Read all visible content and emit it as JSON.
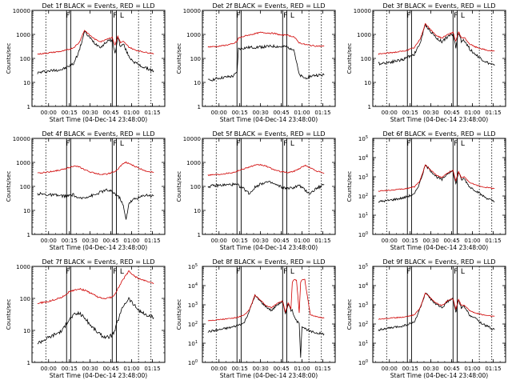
{
  "figure": {
    "xlabel": "Start Time (04-Dec-14 23:48:00)",
    "ylabel": "Counts/sec",
    "x_tick_labels": [
      "00:00",
      "00:15",
      "00:30",
      "00:45",
      "01:00",
      "01:15"
    ]
  },
  "chart_data": [
    {
      "type": "line",
      "title": "Det 1f BLACK = Events, RED = LLD",
      "xlabel": "Start Time (04-Dec-14 23:48:00)",
      "ylabel": "Counts/sec",
      "ylog": true,
      "ylim": [
        1,
        10000
      ],
      "y_tick_labels": [
        "1",
        "10",
        "100",
        "1000",
        "10000"
      ],
      "x_time": [
        -8,
        0,
        10,
        14,
        18,
        22,
        26,
        30,
        34,
        38,
        42,
        46,
        48,
        50,
        52,
        54,
        58,
        62,
        66,
        70,
        76
      ],
      "series": [
        {
          "name": "Events",
          "color": "#000000",
          "values": [
            25,
            30,
            35,
            45,
            60,
            200,
            1300,
            700,
            400,
            300,
            500,
            600,
            150,
            800,
            300,
            400,
            120,
            70,
            50,
            40,
            30
          ]
        },
        {
          "name": "LLD",
          "color": "#d00000",
          "values": [
            150,
            170,
            200,
            230,
            280,
            450,
            1500,
            900,
            600,
            500,
            650,
            750,
            350,
            850,
            450,
            500,
            300,
            230,
            200,
            180,
            160
          ]
        }
      ],
      "markers": {
        "solid": [
          13,
          16,
          46,
          49
        ],
        "dotted": [
          -2,
          65,
          74
        ],
        "letters": [
          {
            "t": 14,
            "label": "F"
          },
          {
            "t": 48,
            "label": "F"
          },
          {
            "t": 53,
            "label": "L"
          }
        ]
      }
    },
    {
      "type": "line",
      "title": "Det 2f BLACK = Events, RED = LLD",
      "xlabel": "Start Time (04-Dec-14 23:48:00)",
      "ylabel": "Counts/sec",
      "ylog": true,
      "ylim": [
        1,
        10000
      ],
      "y_tick_labels": [
        "1",
        "10",
        "100",
        "1000",
        "10000"
      ],
      "x_time": [
        -8,
        0,
        10,
        13,
        14,
        20,
        30,
        40,
        46,
        48,
        50,
        54,
        58,
        62,
        66,
        70,
        76
      ],
      "series": [
        {
          "name": "Events",
          "color": "#000000",
          "values": [
            12,
            15,
            18,
            25,
            250,
            280,
            300,
            320,
            300,
            310,
            280,
            250,
            20,
            15,
            18,
            20,
            20
          ]
        },
        {
          "name": "LLD",
          "color": "#d00000",
          "values": [
            300,
            320,
            400,
            500,
            700,
            900,
            1200,
            1100,
            900,
            1000,
            900,
            800,
            450,
            380,
            350,
            330,
            320
          ]
        }
      ],
      "markers": {
        "solid": [
          13,
          16,
          46,
          49
        ],
        "dotted": [
          -2,
          65,
          74
        ],
        "letters": [
          {
            "t": 14,
            "label": "F"
          },
          {
            "t": 48,
            "label": "F"
          },
          {
            "t": 53,
            "label": "L"
          }
        ]
      }
    },
    {
      "type": "line",
      "title": "Det 3f BLACK = Events, RED = LLD",
      "xlabel": "Start Time (04-Dec-14 23:48:00)",
      "ylabel": "Counts/sec",
      "ylog": true,
      "ylim": [
        1,
        10000
      ],
      "y_tick_labels": [
        "1",
        "10",
        "100",
        "1000",
        "10000"
      ],
      "x_time": [
        -8,
        0,
        10,
        14,
        18,
        22,
        26,
        30,
        34,
        38,
        42,
        46,
        48,
        50,
        52,
        54,
        58,
        62,
        66,
        70,
        76
      ],
      "series": [
        {
          "name": "Events",
          "color": "#000000",
          "values": [
            60,
            70,
            90,
            120,
            150,
            400,
            2500,
            1300,
            700,
            500,
            800,
            1000,
            300,
            1200,
            500,
            600,
            250,
            150,
            100,
            70,
            50
          ]
        },
        {
          "name": "LLD",
          "color": "#d00000",
          "values": [
            150,
            170,
            200,
            230,
            280,
            600,
            2800,
            1500,
            900,
            700,
            1000,
            1200,
            500,
            1300,
            700,
            750,
            400,
            300,
            260,
            220,
            200
          ]
        }
      ],
      "markers": {
        "solid": [
          13,
          16,
          46,
          49
        ],
        "dotted": [
          -2,
          65,
          74
        ],
        "letters": [
          {
            "t": 14,
            "label": "F"
          },
          {
            "t": 48,
            "label": "F"
          },
          {
            "t": 53,
            "label": "L"
          }
        ]
      }
    },
    {
      "type": "line",
      "title": "Det 4f BLACK = Events, RED = LLD",
      "xlabel": "Start Time (04-Dec-14 23:48:00)",
      "ylabel": "Counts/sec",
      "ylog": true,
      "ylim": [
        1,
        10000
      ],
      "y_tick_labels": [
        "1",
        "10",
        "100",
        "1000",
        "10000"
      ],
      "x_time": [
        -8,
        0,
        10,
        14,
        18,
        22,
        26,
        30,
        34,
        38,
        42,
        46,
        48,
        50,
        52,
        54,
        56,
        58,
        62,
        66,
        70,
        76
      ],
      "series": [
        {
          "name": "Events",
          "color": "#000000",
          "values": [
            50,
            45,
            40,
            40,
            45,
            30,
            35,
            40,
            45,
            60,
            70,
            60,
            50,
            40,
            30,
            15,
            4,
            20,
            30,
            35,
            45,
            40
          ]
        },
        {
          "name": "LLD",
          "color": "#d00000",
          "values": [
            350,
            400,
            500,
            600,
            700,
            650,
            500,
            400,
            350,
            320,
            330,
            380,
            420,
            500,
            700,
            900,
            1000,
            900,
            700,
            550,
            450,
            380
          ]
        }
      ],
      "markers": {
        "solid": [
          13,
          16,
          46,
          49
        ],
        "dotted": [
          -2,
          65,
          74
        ],
        "letters": [
          {
            "t": 14,
            "label": "F"
          },
          {
            "t": 48,
            "label": "F"
          },
          {
            "t": 53,
            "label": "L"
          }
        ]
      }
    },
    {
      "type": "line",
      "title": "Det 5f BLACK = Events, RED = LLD",
      "xlabel": "Start Time (04-Dec-14 23:48:00)",
      "ylabel": "Counts/sec",
      "ylog": true,
      "ylim": [
        1,
        10000
      ],
      "y_tick_labels": [
        "1",
        "10",
        "100",
        "1000",
        "10000"
      ],
      "x_time": [
        -8,
        0,
        10,
        14,
        18,
        22,
        26,
        30,
        34,
        38,
        42,
        46,
        50,
        54,
        58,
        62,
        66,
        70,
        76
      ],
      "series": [
        {
          "name": "Events",
          "color": "#000000",
          "values": [
            100,
            110,
            120,
            110,
            80,
            50,
            90,
            130,
            150,
            140,
            110,
            90,
            80,
            90,
            110,
            70,
            50,
            80,
            120
          ]
        },
        {
          "name": "LLD",
          "color": "#d00000",
          "values": [
            300,
            320,
            380,
            450,
            550,
            650,
            750,
            800,
            700,
            550,
            450,
            400,
            380,
            420,
            550,
            750,
            600,
            450,
            350
          ]
        }
      ],
      "markers": {
        "solid": [
          13,
          16,
          46,
          49
        ],
        "dotted": [
          -2,
          65,
          74
        ],
        "letters": [
          {
            "t": 14,
            "label": "F"
          },
          {
            "t": 48,
            "label": "F"
          },
          {
            "t": 53,
            "label": "L"
          }
        ]
      }
    },
    {
      "type": "line",
      "title": "Det 6f BLACK = Events, RED = LLD",
      "xlabel": "Start Time (04-Dec-14 23:48:00)",
      "ylabel": "Counts/sec",
      "ylog": true,
      "ylim": [
        1,
        100000
      ],
      "y_tick_labels": [
        "10^0",
        "10^1",
        "10^2",
        "10^3",
        "10^4",
        "10^5"
      ],
      "x_time": [
        -8,
        0,
        10,
        14,
        18,
        22,
        26,
        30,
        34,
        38,
        42,
        46,
        48,
        50,
        52,
        54,
        58,
        62,
        66,
        70,
        76
      ],
      "series": [
        {
          "name": "Events",
          "color": "#000000",
          "values": [
            50,
            60,
            80,
            100,
            120,
            500,
            4000,
            2000,
            1000,
            700,
            1500,
            2000,
            400,
            1800,
            700,
            800,
            300,
            200,
            120,
            80,
            50
          ]
        },
        {
          "name": "LLD",
          "color": "#d00000",
          "values": [
            180,
            200,
            230,
            260,
            300,
            600,
            4200,
            2200,
            1200,
            900,
            1600,
            2100,
            600,
            1900,
            900,
            1000,
            500,
            380,
            320,
            280,
            250
          ]
        }
      ],
      "markers": {
        "solid": [
          13,
          16,
          46,
          49
        ],
        "dotted": [
          -2,
          65,
          74
        ],
        "letters": [
          {
            "t": 14,
            "label": "F"
          },
          {
            "t": 48,
            "label": "F"
          },
          {
            "t": 53,
            "label": "L"
          }
        ]
      }
    },
    {
      "type": "line",
      "title": "Det 7f BLACK = Events, RED = LLD",
      "xlabel": "Start Time (04-Dec-14 23:48:00)",
      "ylabel": "Counts/sec",
      "ylog": true,
      "ylim": [
        1,
        1000
      ],
      "y_tick_labels": [
        "1",
        "10",
        "100",
        "1000"
      ],
      "x_time": [
        -8,
        0,
        10,
        14,
        18,
        22,
        26,
        30,
        34,
        38,
        42,
        46,
        48,
        50,
        54,
        58,
        62,
        66,
        70,
        76
      ],
      "series": [
        {
          "name": "Events",
          "color": "#000000",
          "values": [
            4,
            6,
            10,
            20,
            30,
            35,
            25,
            15,
            10,
            7,
            6,
            7,
            10,
            20,
            60,
            100,
            60,
            40,
            30,
            25
          ]
        },
        {
          "name": "LLD",
          "color": "#d00000",
          "values": [
            70,
            80,
            110,
            150,
            180,
            200,
            180,
            150,
            120,
            100,
            100,
            110,
            140,
            200,
            400,
            700,
            500,
            400,
            350,
            300
          ]
        }
      ],
      "markers": {
        "solid": [
          13,
          16,
          46,
          49
        ],
        "dotted": [
          -2,
          65,
          74
        ],
        "letters": [
          {
            "t": 14,
            "label": "F"
          },
          {
            "t": 48,
            "label": "F"
          },
          {
            "t": 53,
            "label": "L"
          }
        ]
      }
    },
    {
      "type": "line",
      "title": "Det 8f BLACK = Events, RED = LLD",
      "xlabel": "Start Time (04-Dec-14 23:48:00)",
      "ylabel": "Counts/sec",
      "ylog": true,
      "ylim": [
        1,
        100000
      ],
      "y_tick_labels": [
        "10^0",
        "10^1",
        "10^2",
        "10^3",
        "10^4",
        "10^5"
      ],
      "x_time": [
        -8,
        0,
        10,
        14,
        18,
        22,
        26,
        30,
        34,
        38,
        42,
        46,
        48,
        50,
        52,
        53,
        54,
        56,
        58,
        59,
        60,
        62,
        66,
        70,
        76
      ],
      "series": [
        {
          "name": "Events",
          "color": "#000000",
          "values": [
            40,
            50,
            70,
            90,
            110,
            500,
            3000,
            1500,
            800,
            500,
            1000,
            1500,
            300,
            1200,
            500,
            600,
            250,
            150,
            100,
            2,
            80,
            60,
            40,
            35,
            30
          ]
        },
        {
          "name": "LLD",
          "color": "#d00000",
          "values": [
            150,
            170,
            200,
            230,
            280,
            550,
            3200,
            1700,
            900,
            700,
            1200,
            1600,
            400,
            1300,
            600,
            15000,
            20000,
            20000,
            400,
            15000,
            20000,
            20000,
            300,
            250,
            200
          ]
        }
      ],
      "markers": {
        "solid": [
          13,
          16,
          46,
          49
        ],
        "dotted": [
          -2,
          65,
          74
        ],
        "letters": [
          {
            "t": 14,
            "label": "F"
          },
          {
            "t": 48,
            "label": "F"
          },
          {
            "t": 53,
            "label": "L"
          }
        ]
      }
    },
    {
      "type": "line",
      "title": "Det 9f BLACK = Events, RED = LLD",
      "xlabel": "Start Time (04-Dec-14 23:48:00)",
      "ylabel": "Counts/sec",
      "ylog": true,
      "ylim": [
        1,
        100000
      ],
      "y_tick_labels": [
        "10^0",
        "10^1",
        "10^2",
        "10^3",
        "10^4",
        "10^5"
      ],
      "x_time": [
        -8,
        0,
        10,
        14,
        18,
        22,
        26,
        30,
        34,
        38,
        42,
        46,
        48,
        50,
        52,
        54,
        58,
        62,
        66,
        70,
        76
      ],
      "series": [
        {
          "name": "Events",
          "color": "#000000",
          "values": [
            50,
            60,
            80,
            100,
            120,
            600,
            4000,
            2000,
            1000,
            700,
            1500,
            2000,
            400,
            1800,
            700,
            800,
            300,
            200,
            120,
            80,
            50
          ]
        },
        {
          "name": "LLD",
          "color": "#d00000",
          "values": [
            180,
            200,
            230,
            260,
            300,
            650,
            4200,
            2200,
            1200,
            900,
            1600,
            2100,
            600,
            1900,
            900,
            1000,
            500,
            380,
            320,
            280,
            250
          ]
        }
      ],
      "markers": {
        "solid": [
          13,
          16,
          46,
          49
        ],
        "dotted": [
          -2,
          65,
          74
        ],
        "letters": [
          {
            "t": 14,
            "label": "F"
          },
          {
            "t": 48,
            "label": "F"
          },
          {
            "t": 53,
            "label": "L"
          }
        ]
      }
    }
  ]
}
